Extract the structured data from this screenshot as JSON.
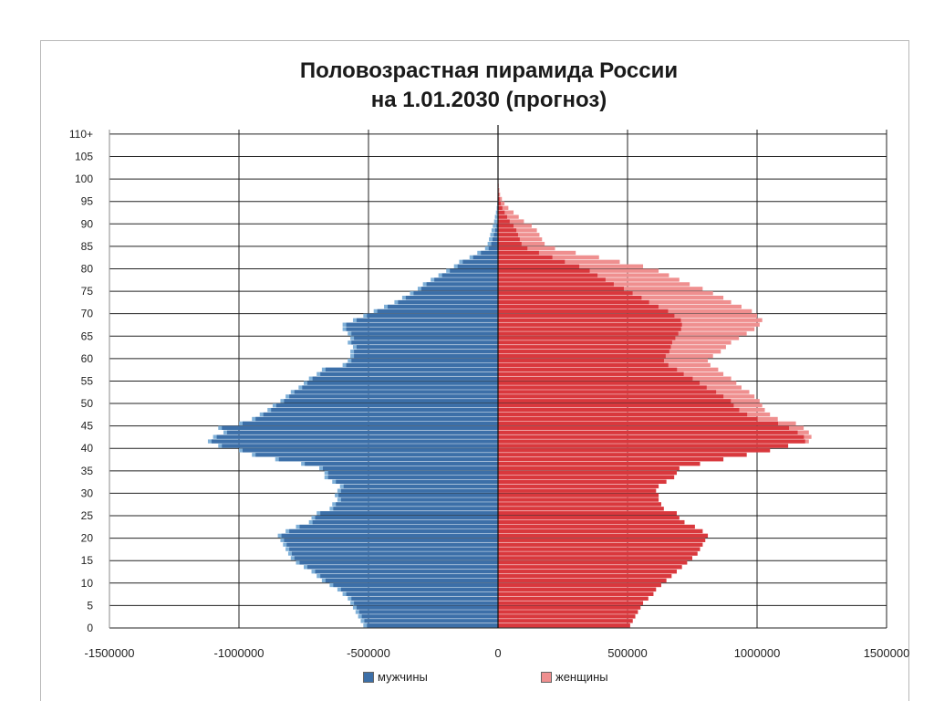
{
  "title_line1": "Половозрастная пирамида России",
  "title_line2": "на 1.01.2030  (прогноз)",
  "legend": {
    "male": "мужчины",
    "female": "женщины"
  },
  "colors": {
    "male_main": "#3c6fa8",
    "male_light": "#7fb0d8",
    "female_main": "#d9383d",
    "female_light": "#ef8f8f"
  },
  "chart_data": {
    "type": "bar",
    "orientation": "horizontal-pyramid",
    "title": "Половозрастная пирамида России на 1.01.2030  (прогноз)",
    "xlim": [
      -1500000,
      1500000
    ],
    "x_ticks": [
      "-1500000",
      "-1000000",
      "-500000",
      "0",
      "500000",
      "1000000",
      "1500000"
    ],
    "y_ticks": [
      "0",
      "5",
      "10",
      "15",
      "20",
      "25",
      "30",
      "35",
      "40",
      "45",
      "50",
      "55",
      "60",
      "65",
      "70",
      "75",
      "80",
      "85",
      "90",
      "95",
      "100",
      "105",
      "110+"
    ],
    "series": [
      {
        "name": "мужчины",
        "values": [
          -520000,
          -530000,
          -540000,
          -550000,
          -560000,
          -570000,
          -580000,
          -600000,
          -620000,
          -650000,
          -680000,
          -700000,
          -720000,
          -750000,
          -780000,
          -800000,
          -810000,
          -820000,
          -830000,
          -840000,
          -850000,
          -820000,
          -780000,
          -730000,
          -720000,
          -700000,
          -650000,
          -640000,
          -620000,
          -630000,
          -620000,
          -610000,
          -640000,
          -670000,
          -670000,
          -690000,
          -760000,
          -860000,
          -950000,
          -1000000,
          -1080000,
          -1120000,
          -1100000,
          -1060000,
          -1080000,
          -1000000,
          -950000,
          -920000,
          -890000,
          -870000,
          -840000,
          -820000,
          -800000,
          -770000,
          -750000,
          -730000,
          -700000,
          -680000,
          -600000,
          -580000,
          -570000,
          -570000,
          -560000,
          -580000,
          -570000,
          -580000,
          -600000,
          -600000,
          -560000,
          -520000,
          -480000,
          -440000,
          -400000,
          -370000,
          -340000,
          -310000,
          -290000,
          -260000,
          -230000,
          -200000,
          -170000,
          -150000,
          -110000,
          -80000,
          -50000,
          -40000,
          -35000,
          -30000,
          -25000,
          -20000,
          -15000,
          -12000,
          -8000,
          -5000,
          -3000,
          -2000,
          -1000,
          -600,
          -400,
          -300,
          -200,
          -100,
          -100,
          -80,
          -60,
          -40,
          -30,
          -20,
          -10,
          -10,
          -5
        ]
      },
      {
        "name": "женщины",
        "values": [
          510000,
          520000,
          530000,
          540000,
          550000,
          560000,
          580000,
          600000,
          610000,
          630000,
          650000,
          670000,
          690000,
          710000,
          730000,
          750000,
          770000,
          780000,
          790000,
          800000,
          810000,
          790000,
          760000,
          720000,
          700000,
          690000,
          640000,
          630000,
          620000,
          620000,
          610000,
          620000,
          650000,
          680000,
          690000,
          700000,
          780000,
          870000,
          960000,
          1050000,
          1120000,
          1200000,
          1210000,
          1200000,
          1180000,
          1150000,
          1080000,
          1050000,
          1030000,
          1020000,
          1010000,
          990000,
          970000,
          940000,
          920000,
          900000,
          870000,
          850000,
          820000,
          810000,
          830000,
          860000,
          880000,
          900000,
          930000,
          960000,
          990000,
          1010000,
          1020000,
          1000000,
          980000,
          940000,
          900000,
          870000,
          830000,
          790000,
          740000,
          700000,
          660000,
          620000,
          560000,
          470000,
          390000,
          300000,
          220000,
          180000,
          170000,
          160000,
          150000,
          130000,
          100000,
          80000,
          60000,
          40000,
          25000,
          15000,
          8000,
          5000,
          3000,
          2000,
          1000,
          700,
          500,
          300,
          200,
          100,
          80,
          50,
          30,
          20,
          10
        ]
      }
    ],
    "grid": true,
    "legend_position": "bottom"
  }
}
